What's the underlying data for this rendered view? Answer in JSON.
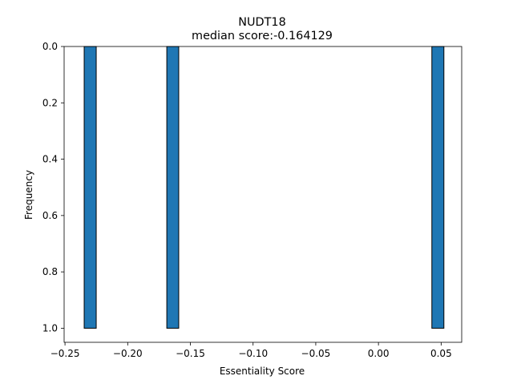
{
  "chart_data": {
    "type": "bar",
    "title": "NUDT18",
    "subtitle": "median score:-0.164129",
    "xlabel": "Essentiality Score",
    "ylabel": "Frequency",
    "bins": [
      {
        "x0": -0.2347,
        "x1": -0.2251,
        "value": 1.0
      },
      {
        "x0": -0.1688,
        "x1": -0.1593,
        "value": 1.0
      },
      {
        "x0": 0.0426,
        "x1": 0.0522,
        "value": 1.0
      }
    ],
    "xlim": [
      -0.2507,
      0.0664
    ],
    "ylim": [
      1.05,
      0.0
    ],
    "y_inverted": true,
    "xticks": [
      -0.25,
      -0.2,
      -0.15,
      -0.1,
      -0.05,
      0.0,
      0.05
    ],
    "xtick_labels": [
      "−0.25",
      "−0.20",
      "−0.15",
      "−0.10",
      "−0.05",
      "0.00",
      "0.05"
    ],
    "yticks": [
      0.0,
      0.2,
      0.4,
      0.6,
      0.8,
      1.0
    ],
    "ytick_labels": [
      "0.0",
      "0.2",
      "0.4",
      "0.6",
      "0.8",
      "1.0"
    ],
    "grid": false,
    "bar_color": "#1f77b4",
    "edge_color": "#000000"
  }
}
